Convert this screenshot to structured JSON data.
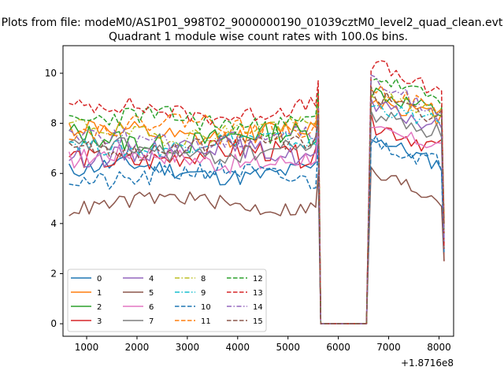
{
  "chart_data": {
    "type": "line",
    "suptitle": "Plots from file: modeM0/AS1P01_998T02_9000000190_01039cztM0_level2_quad_clean.evt",
    "title": "Quadrant 1 module wise count rates with 100.0s bins.",
    "xlabel": "",
    "ylabel": "",
    "xlim": [
      530,
      8290
    ],
    "ylim": [
      -0.5,
      11.1
    ],
    "x_offset_label": "+1.8716e8",
    "xticks": [
      1000,
      2000,
      3000,
      4000,
      5000,
      6000,
      7000,
      8000
    ],
    "xtick_labels": [
      "1000",
      "2000",
      "3000",
      "4000",
      "5000",
      "6000",
      "7000",
      "8000"
    ],
    "yticks": [
      0,
      2,
      4,
      6,
      8,
      10
    ],
    "ytick_labels": [
      "0",
      "2",
      "4",
      "6",
      "8",
      "10"
    ],
    "legend_position": "lower-left",
    "legend_columns": 4,
    "gap": {
      "start": 5650,
      "end": 6560,
      "value": 0
    },
    "segment1": {
      "start": 650,
      "end": 5550,
      "step": 100
    },
    "segment2": {
      "start": 6650,
      "end": 8050,
      "step": 100
    },
    "series": [
      {
        "name": "0",
        "color": "#1f77b4",
        "style": "solid",
        "seg1_level": 6.1,
        "seg1_amp": 0.35,
        "seg2_start": 7.5,
        "seg2_end": 6.3,
        "seg2_amp": 0.3,
        "final": 3.0
      },
      {
        "name": "1",
        "color": "#ff7f0e",
        "style": "solid",
        "seg1_level": 7.6,
        "seg1_amp": 0.4,
        "seg2_start": 9.0,
        "seg2_end": 8.2,
        "seg2_amp": 0.35,
        "final": 4.0
      },
      {
        "name": "2",
        "color": "#2ca02c",
        "style": "solid",
        "seg1_level": 7.4,
        "seg1_amp": 0.45,
        "seg2_start": 9.3,
        "seg2_end": 8.4,
        "seg2_amp": 0.35,
        "final": 3.2
      },
      {
        "name": "3",
        "color": "#d62728",
        "style": "solid",
        "seg1_level": 6.7,
        "seg1_amp": 0.45,
        "seg2_start": 8.0,
        "seg2_end": 7.0,
        "seg2_amp": 0.4,
        "final": 2.5
      },
      {
        "name": "4",
        "color": "#9467bd",
        "style": "solid",
        "seg1_level": 6.9,
        "seg1_amp": 0.4,
        "seg2_start": 8.7,
        "seg2_end": 7.8,
        "seg2_amp": 0.35,
        "final": 3.5
      },
      {
        "name": "5",
        "color": "#8c564b",
        "style": "solid",
        "seg1_level": 4.8,
        "seg1_amp": 0.3,
        "seg2_start": 6.0,
        "seg2_end": 5.0,
        "seg2_amp": 0.4,
        "final": 2.5
      },
      {
        "name": "6",
        "color": "#e377c2",
        "style": "solid",
        "seg1_level": 6.6,
        "seg1_amp": 0.4,
        "seg2_start": 7.7,
        "seg2_end": 7.1,
        "seg2_amp": 0.3,
        "final": 3.2
      },
      {
        "name": "7",
        "color": "#7f7f7f",
        "style": "solid",
        "seg1_level": 6.9,
        "seg1_amp": 0.35,
        "seg2_start": 8.4,
        "seg2_end": 7.6,
        "seg2_amp": 0.35,
        "final": 3.0
      },
      {
        "name": "8",
        "color": "#bcbd22",
        "style": "dashdot",
        "seg1_level": 7.7,
        "seg1_amp": 0.35,
        "seg2_start": 9.1,
        "seg2_end": 8.4,
        "seg2_amp": 0.3,
        "final": 3.8
      },
      {
        "name": "9",
        "color": "#17becf",
        "style": "dashdot",
        "seg1_level": 7.2,
        "seg1_amp": 0.35,
        "seg2_start": 8.7,
        "seg2_end": 8.0,
        "seg2_amp": 0.3,
        "final": 3.4
      },
      {
        "name": "10",
        "color": "#1f77b4",
        "style": "dashed",
        "seg1_level": 5.9,
        "seg1_amp": 0.4,
        "seg2_start": 7.3,
        "seg2_end": 6.4,
        "seg2_amp": 0.35,
        "final": 2.8
      },
      {
        "name": "11",
        "color": "#ff7f0e",
        "style": "dashed",
        "seg1_level": 7.9,
        "seg1_amp": 0.35,
        "seg2_start": 9.5,
        "seg2_end": 8.5,
        "seg2_amp": 0.3,
        "final": 4.2
      },
      {
        "name": "12",
        "color": "#2ca02c",
        "style": "dashed",
        "seg1_level": 8.1,
        "seg1_amp": 0.4,
        "seg2_start": 9.9,
        "seg2_end": 8.9,
        "seg2_amp": 0.3,
        "final": 3.6
      },
      {
        "name": "13",
        "color": "#d62728",
        "style": "dashed",
        "seg1_level": 8.5,
        "seg1_amp": 0.35,
        "seg2_start": 10.4,
        "seg2_end": 9.1,
        "seg2_amp": 0.35,
        "final": 3.0
      },
      {
        "name": "14",
        "color": "#9467bd",
        "style": "dashdot",
        "seg1_level": 7.4,
        "seg1_amp": 0.4,
        "seg2_start": 9.6,
        "seg2_end": 8.5,
        "seg2_amp": 0.35,
        "final": 3.3
      },
      {
        "name": "15",
        "color": "#8c564b",
        "style": "dashed",
        "seg1_level": 7.1,
        "seg1_amp": 0.35,
        "seg2_start": 9.2,
        "seg2_end": 8.2,
        "seg2_amp": 0.35,
        "final": 4.0
      }
    ]
  }
}
